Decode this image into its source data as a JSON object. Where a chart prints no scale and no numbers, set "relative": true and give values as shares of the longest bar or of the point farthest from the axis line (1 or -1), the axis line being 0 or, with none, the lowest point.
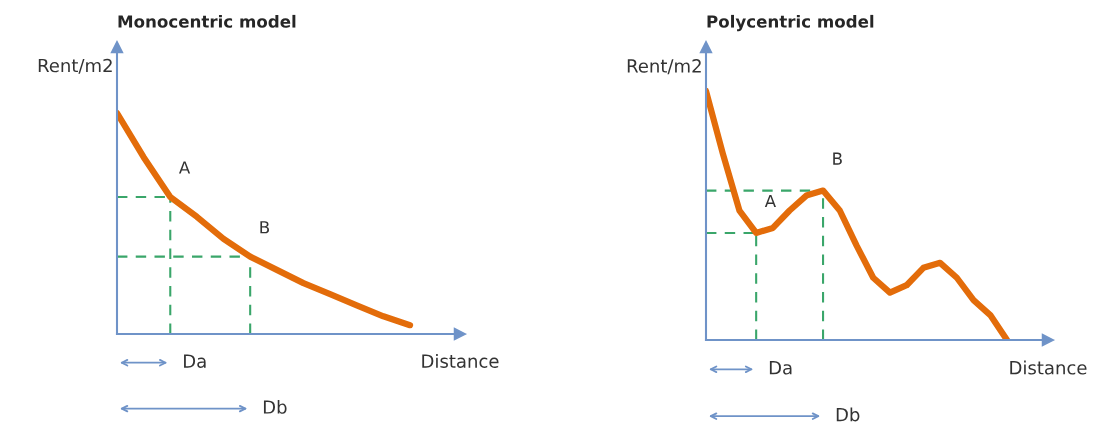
{
  "chart_data": [
    {
      "type": "line",
      "title": "Monocentric model",
      "xlabel": "Distance",
      "ylabel": "Rent/m2",
      "relative": true,
      "categories": [
        null,
        null,
        null,
        null,
        null,
        null,
        null,
        null,
        null,
        null,
        null,
        null
      ],
      "series": [
        {
          "color": "#e36c0a",
          "values": [
            1.0,
            0.8,
            0.62,
            0.53,
            0.43,
            0.35,
            0.29,
            0.23,
            0.18,
            0.13,
            0.08,
            0.04
          ]
        }
      ],
      "ref_lines": [
        {
          "axis": "y",
          "value": 0.62,
          "label": "A",
          "color": "#3aa66a",
          "line_style": "dashed"
        },
        {
          "axis": "y",
          "value": 0.35,
          "label": "B",
          "color": "#3aa66a",
          "line_style": "dashed"
        }
      ],
      "annotations": [
        "Da",
        "Db"
      ],
      "line_style": "solid"
    },
    {
      "type": "line",
      "title": "Polycentric model",
      "xlabel": "Distance",
      "ylabel": "Rent/m2",
      "relative": true,
      "categories": [
        null,
        null,
        null,
        null,
        null,
        null,
        null,
        null,
        null,
        null,
        null,
        null,
        null,
        null,
        null,
        null,
        null,
        null,
        null
      ],
      "series": [
        {
          "color": "#e36c0a",
          "values": [
            1.0,
            0.75,
            0.52,
            0.43,
            0.45,
            0.52,
            0.58,
            0.6,
            0.52,
            0.38,
            0.25,
            0.19,
            0.22,
            0.29,
            0.31,
            0.25,
            0.16,
            0.1,
            0.0
          ]
        }
      ],
      "ref_lines": [
        {
          "axis": "y",
          "value": 0.43,
          "label": "A",
          "color": "#3aa66a",
          "line_style": "dashed"
        },
        {
          "axis": "y",
          "value": 0.6,
          "label": "B",
          "color": "#3aa66a",
          "line_style": "dashed"
        }
      ],
      "annotations": [
        "Da",
        "Db"
      ],
      "line_style": "solid"
    }
  ]
}
